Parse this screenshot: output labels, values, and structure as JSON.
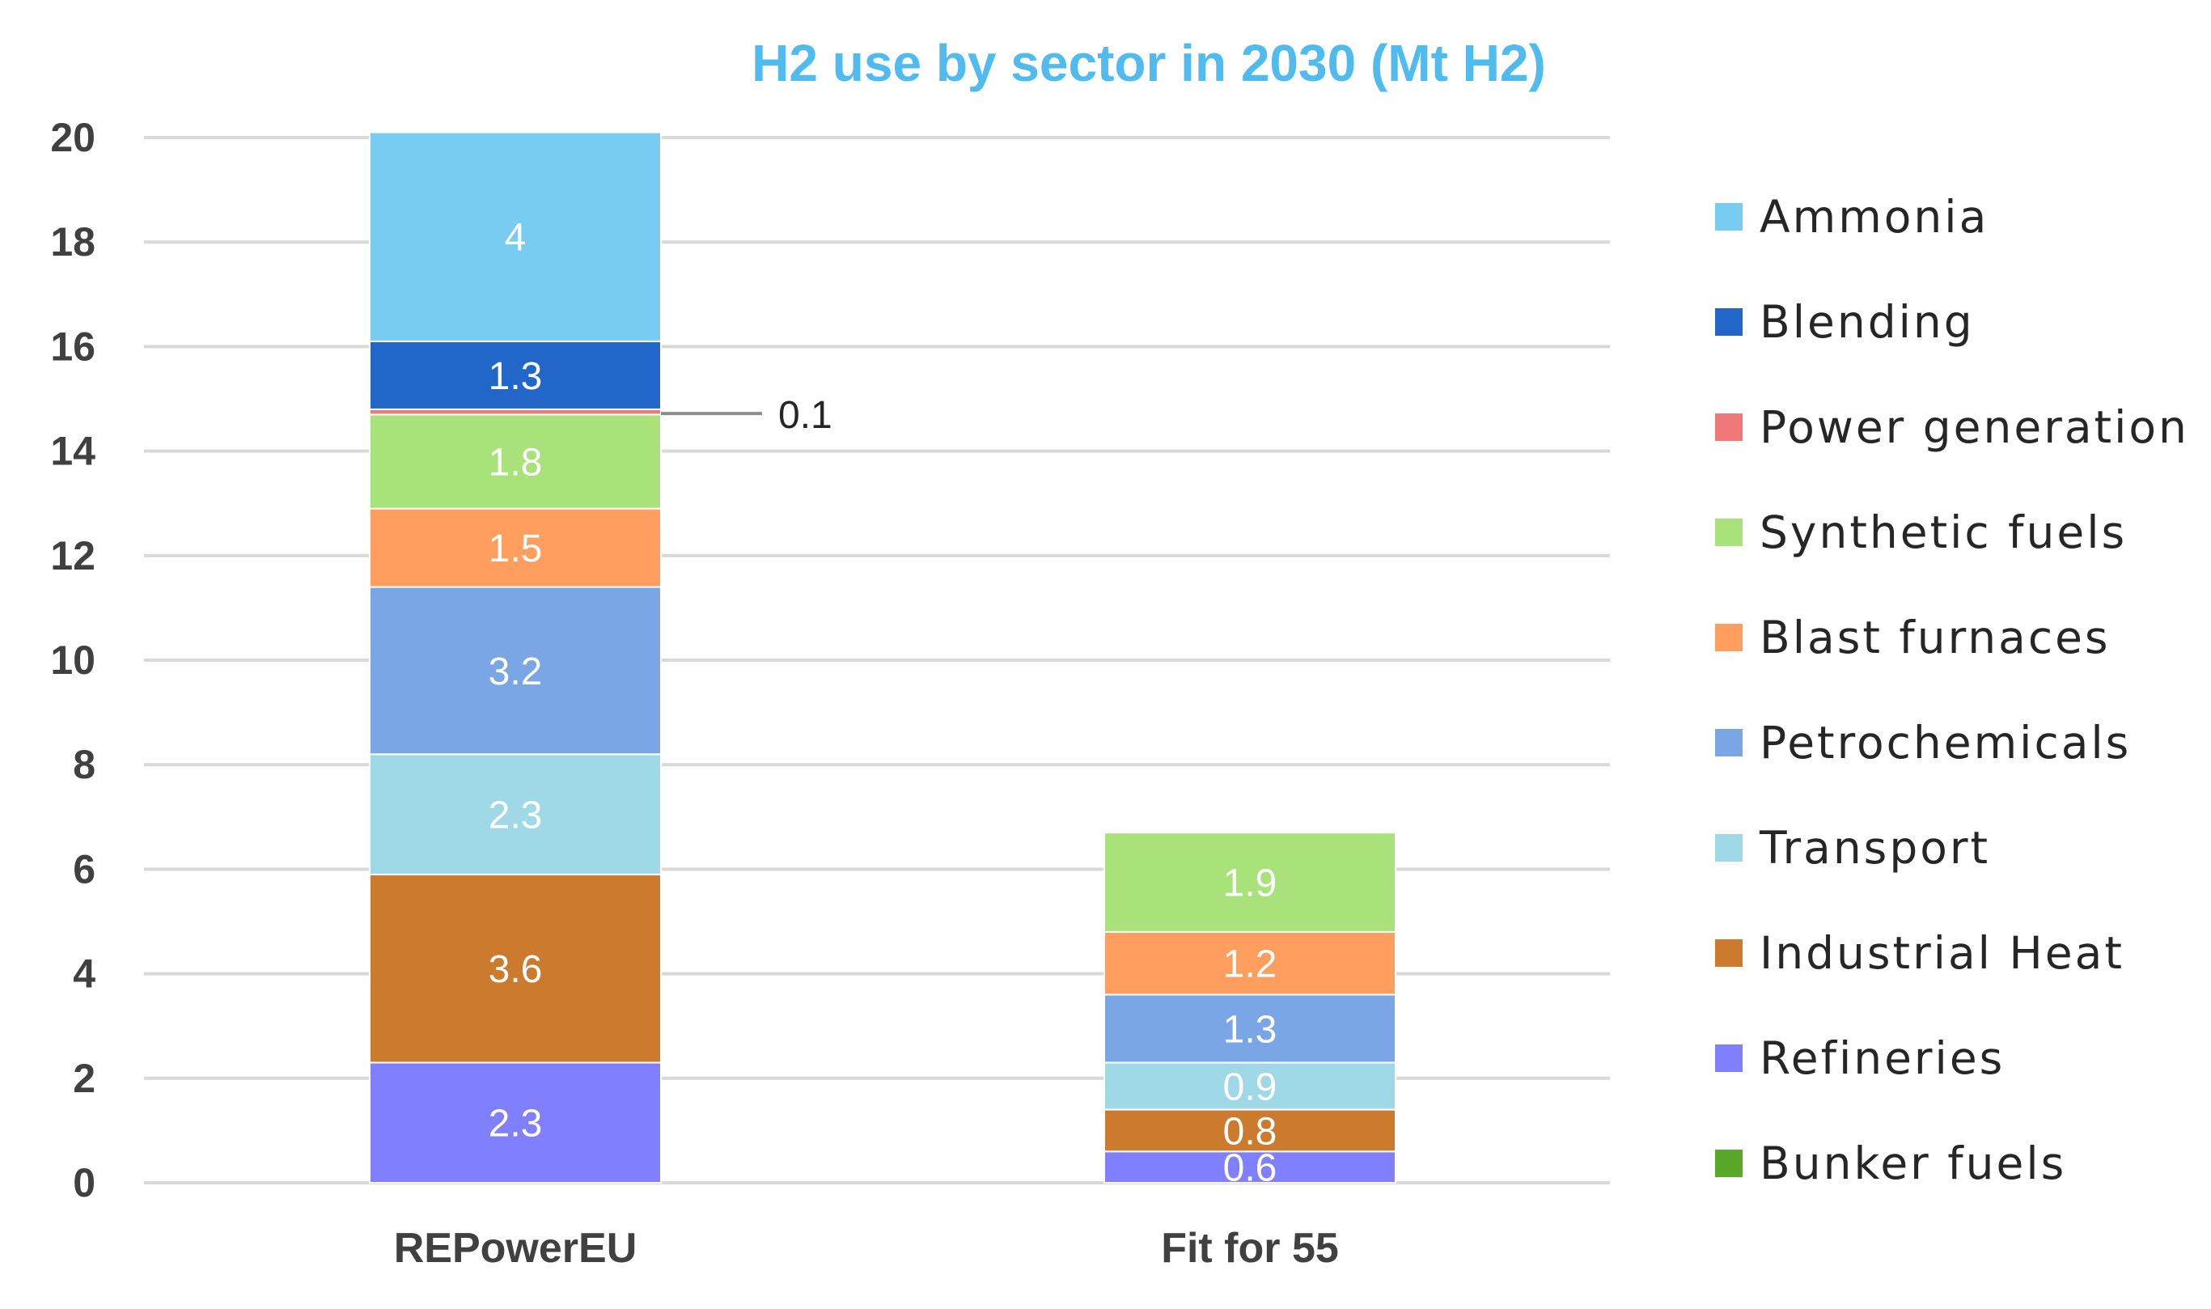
{
  "chart_data": {
    "type": "bar",
    "stacked": true,
    "title": "H2 use by sector in 2030 (Mt H2)",
    "categories": [
      "REPowerEU",
      "Fit for 55"
    ],
    "ylim": [
      0,
      20
    ],
    "yticks": [
      "0",
      "2",
      "4",
      "6",
      "8",
      "10",
      "12",
      "14",
      "16",
      "18",
      "20"
    ],
    "grid": true,
    "legend_position": "right",
    "series": [
      {
        "name": "Refineries",
        "color": "#8080ff",
        "values": [
          2.3,
          0.6
        ],
        "labels": [
          "2.3",
          "0.6"
        ]
      },
      {
        "name": "Industrial Heat",
        "color": "#cc7a2e",
        "values": [
          3.6,
          0.8
        ],
        "labels": [
          "3.6",
          "0.8"
        ]
      },
      {
        "name": "Transport",
        "color": "#9fd9e8",
        "values": [
          2.3,
          0.9
        ],
        "labels": [
          "2.3",
          "0.9"
        ]
      },
      {
        "name": "Petrochemicals",
        "color": "#7aa6e6",
        "values": [
          3.2,
          1.3
        ],
        "labels": [
          "3.2",
          "1.3"
        ]
      },
      {
        "name": "Blast furnaces",
        "color": "#ff9e5e",
        "values": [
          1.5,
          1.2
        ],
        "labels": [
          "1.5",
          "1.2"
        ]
      },
      {
        "name": "Synthetic fuels",
        "color": "#a9e27a",
        "values": [
          1.8,
          1.9
        ],
        "labels": [
          "1.8",
          "1.9"
        ]
      },
      {
        "name": "Power generation",
        "color": "#f07878",
        "values": [
          0.1,
          0
        ],
        "labels": [
          "",
          ""
        ]
      },
      {
        "name": "Blending",
        "color": "#2266c9",
        "values": [
          1.3,
          0
        ],
        "labels": [
          "1.3",
          ""
        ]
      },
      {
        "name": "Ammonia",
        "color": "#78ccf2",
        "values": [
          4,
          0
        ],
        "labels": [
          "4",
          ""
        ]
      },
      {
        "name": "Bunker fuels",
        "color": "#5aa82a",
        "values": [
          0,
          0
        ],
        "labels": [
          "",
          ""
        ]
      }
    ],
    "legend_order": [
      "Ammonia",
      "Blending",
      "Power generation",
      "Synthetic fuels",
      "Blast furnaces",
      "Petrochemicals",
      "Transport",
      "Industrial Heat",
      "Refineries",
      "Bunker fuels"
    ],
    "callouts": [
      {
        "series": "Power generation",
        "category": "REPowerEU",
        "text": "0.1"
      }
    ]
  },
  "colors": {
    "title": "#4fbbee",
    "grid": "#d9d9d9",
    "axis_text": "#404040",
    "leader_line": "#8c8c8c"
  }
}
